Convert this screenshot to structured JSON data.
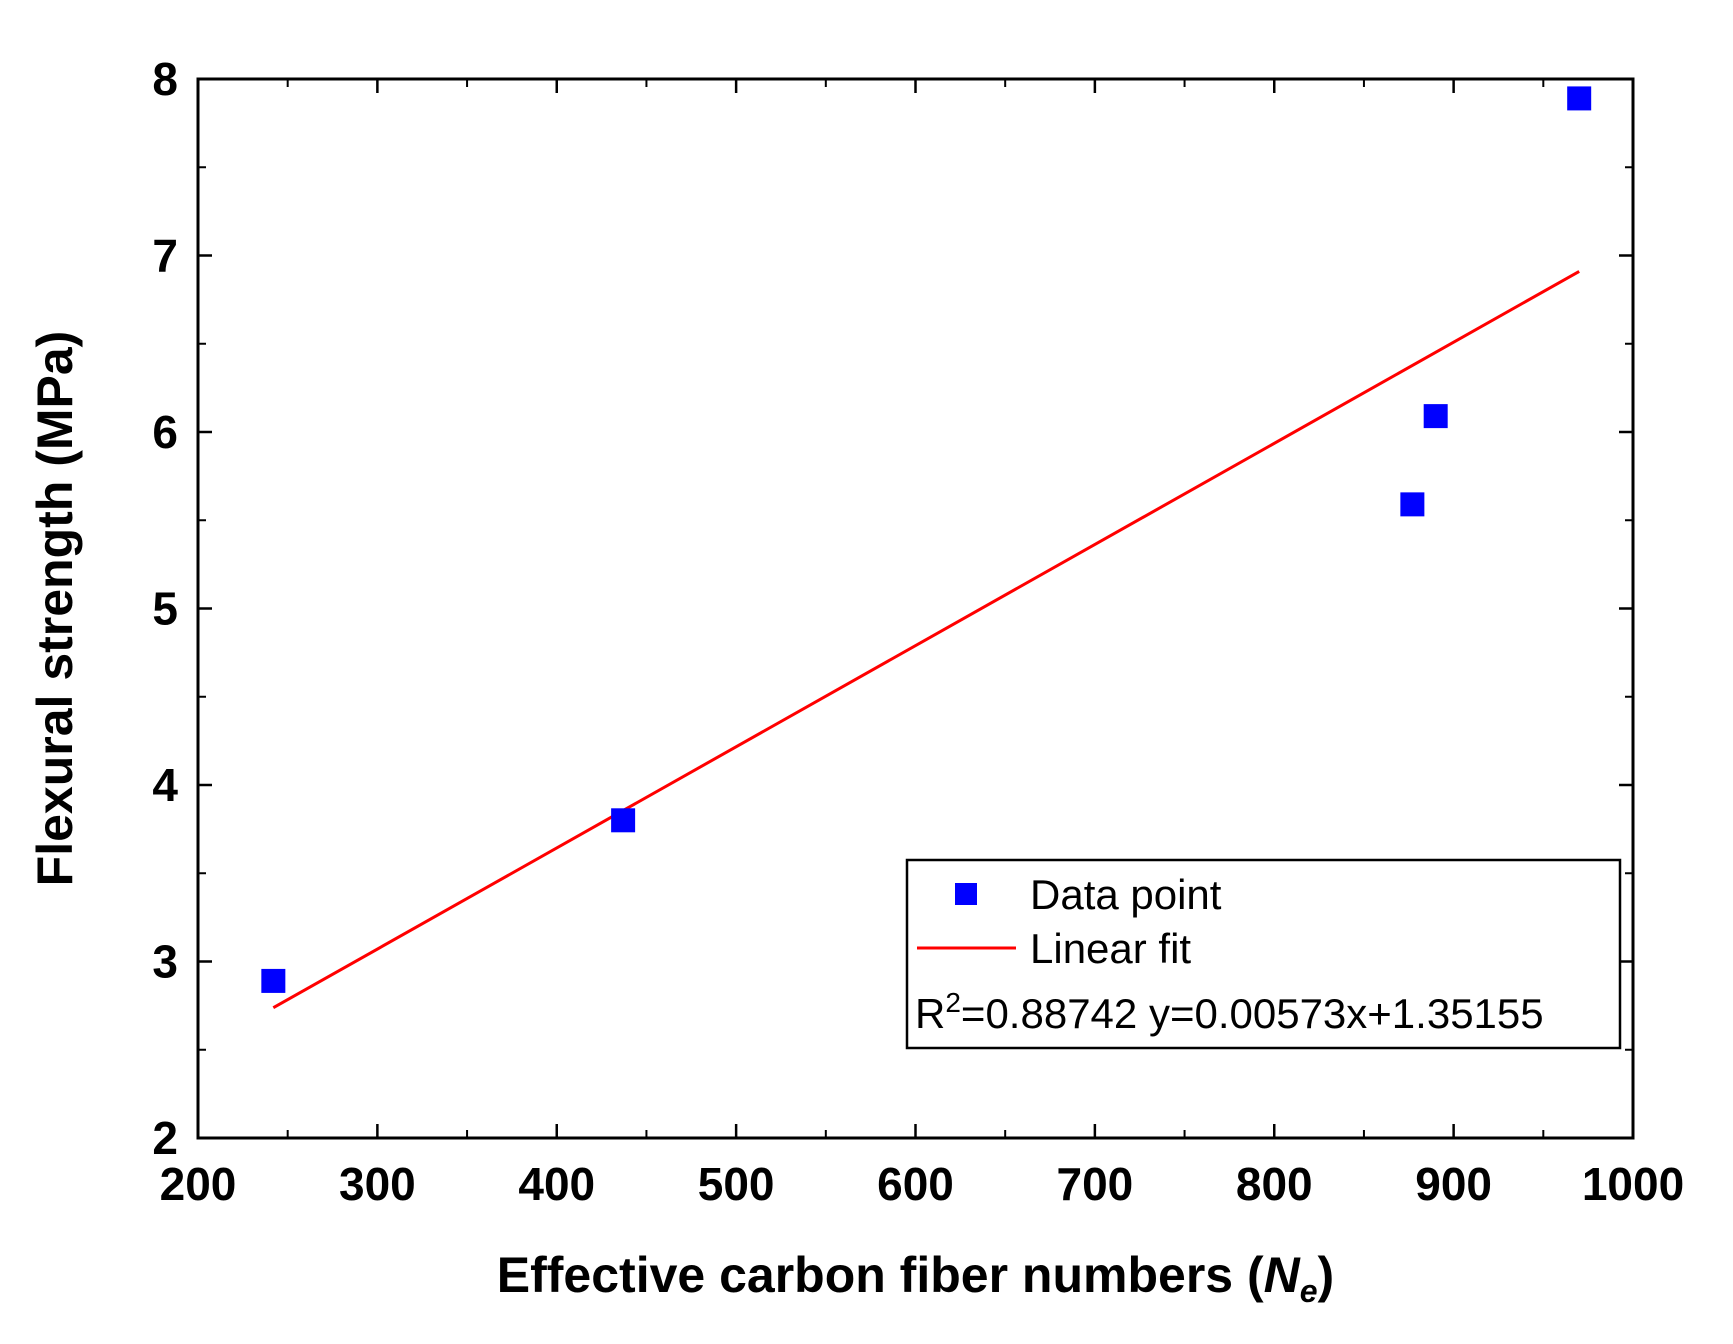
{
  "chart_data": {
    "type": "scatter",
    "xlabel": "Effective carbon fiber numbers (",
    "xlabel_var": "N",
    "xlabel_sub": "e",
    "xlabel_close": ")",
    "ylabel": "Flexural strength (MPa)",
    "xlim": [
      200,
      1000
    ],
    "ylim": [
      2,
      8
    ],
    "x_ticks": [
      200,
      300,
      400,
      500,
      600,
      700,
      800,
      900,
      1000
    ],
    "y_ticks": [
      2,
      3,
      4,
      5,
      6,
      7,
      8
    ],
    "x_tick_labels": [
      "200",
      "300",
      "400",
      "500",
      "600",
      "700",
      "800",
      "900",
      "1000"
    ],
    "y_tick_labels": [
      "2",
      "3",
      "4",
      "5",
      "6",
      "7",
      "8"
    ],
    "series": [
      {
        "name": "Data point",
        "kind": "scatter",
        "color": "#0000ff",
        "x": [
          242,
          437,
          877,
          890,
          970
        ],
        "y": [
          2.89,
          3.8,
          5.59,
          6.09,
          7.89
        ]
      },
      {
        "name": "Linear fit",
        "kind": "line",
        "color": "#ff0000",
        "x": [
          242,
          970
        ],
        "y": [
          2.738,
          6.91
        ]
      }
    ],
    "legend": {
      "position": "bottom-right",
      "entries": [
        "Data point",
        "Linear fit"
      ],
      "stat_r": "R",
      "stat_r_exp": "2",
      "stat_rest": "=0.88742  y=0.00573x+1.35155"
    }
  }
}
